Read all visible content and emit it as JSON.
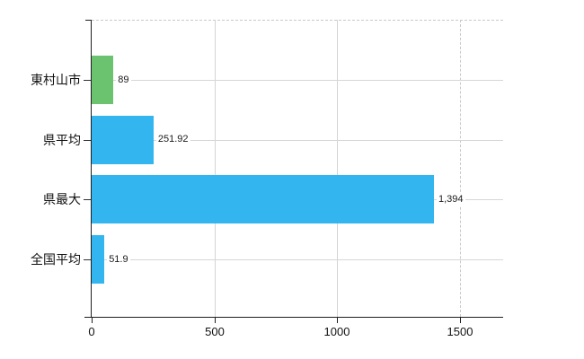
{
  "chart_data": {
    "type": "bar",
    "orientation": "horizontal",
    "title": "",
    "categories": [
      "東村山市",
      "県平均",
      "県最大",
      "全国平均"
    ],
    "values": [
      89,
      251.92,
      1394,
      51.9
    ],
    "value_labels": [
      "89",
      "251.92",
      "1,394",
      "51.9"
    ],
    "series": [
      {
        "name": "value",
        "values": [
          89,
          251.92,
          1394,
          51.9
        ],
        "colors": [
          "#6bc26f",
          "#33b5ef",
          "#33b5ef",
          "#33b5ef"
        ]
      }
    ],
    "xlabel": "",
    "ylabel": "",
    "x_ticks": [
      0,
      500,
      1000,
      1500
    ],
    "x_tick_labels": [
      "0",
      "500",
      "1000",
      "1500"
    ],
    "xlim": [
      0,
      1675
    ],
    "grid": "on",
    "legend": "none",
    "layout_hints": {
      "vertical_gridlines": [
        {
          "value": 500,
          "style": "solid"
        },
        {
          "value": 1000,
          "style": "solid"
        },
        {
          "value": 1500,
          "style": "dashed"
        }
      ],
      "row_gridlines": "solid line across plot at each category center",
      "top_border": "dashed"
    }
  },
  "colors": {
    "bar_green": "#6bc26f",
    "bar_blue": "#33b5ef",
    "grid": "#d6d6d6",
    "grid_dashed": "#c9c9c9",
    "axis": "#1f1f1f",
    "text": "#111111",
    "background": "#ffffff"
  }
}
